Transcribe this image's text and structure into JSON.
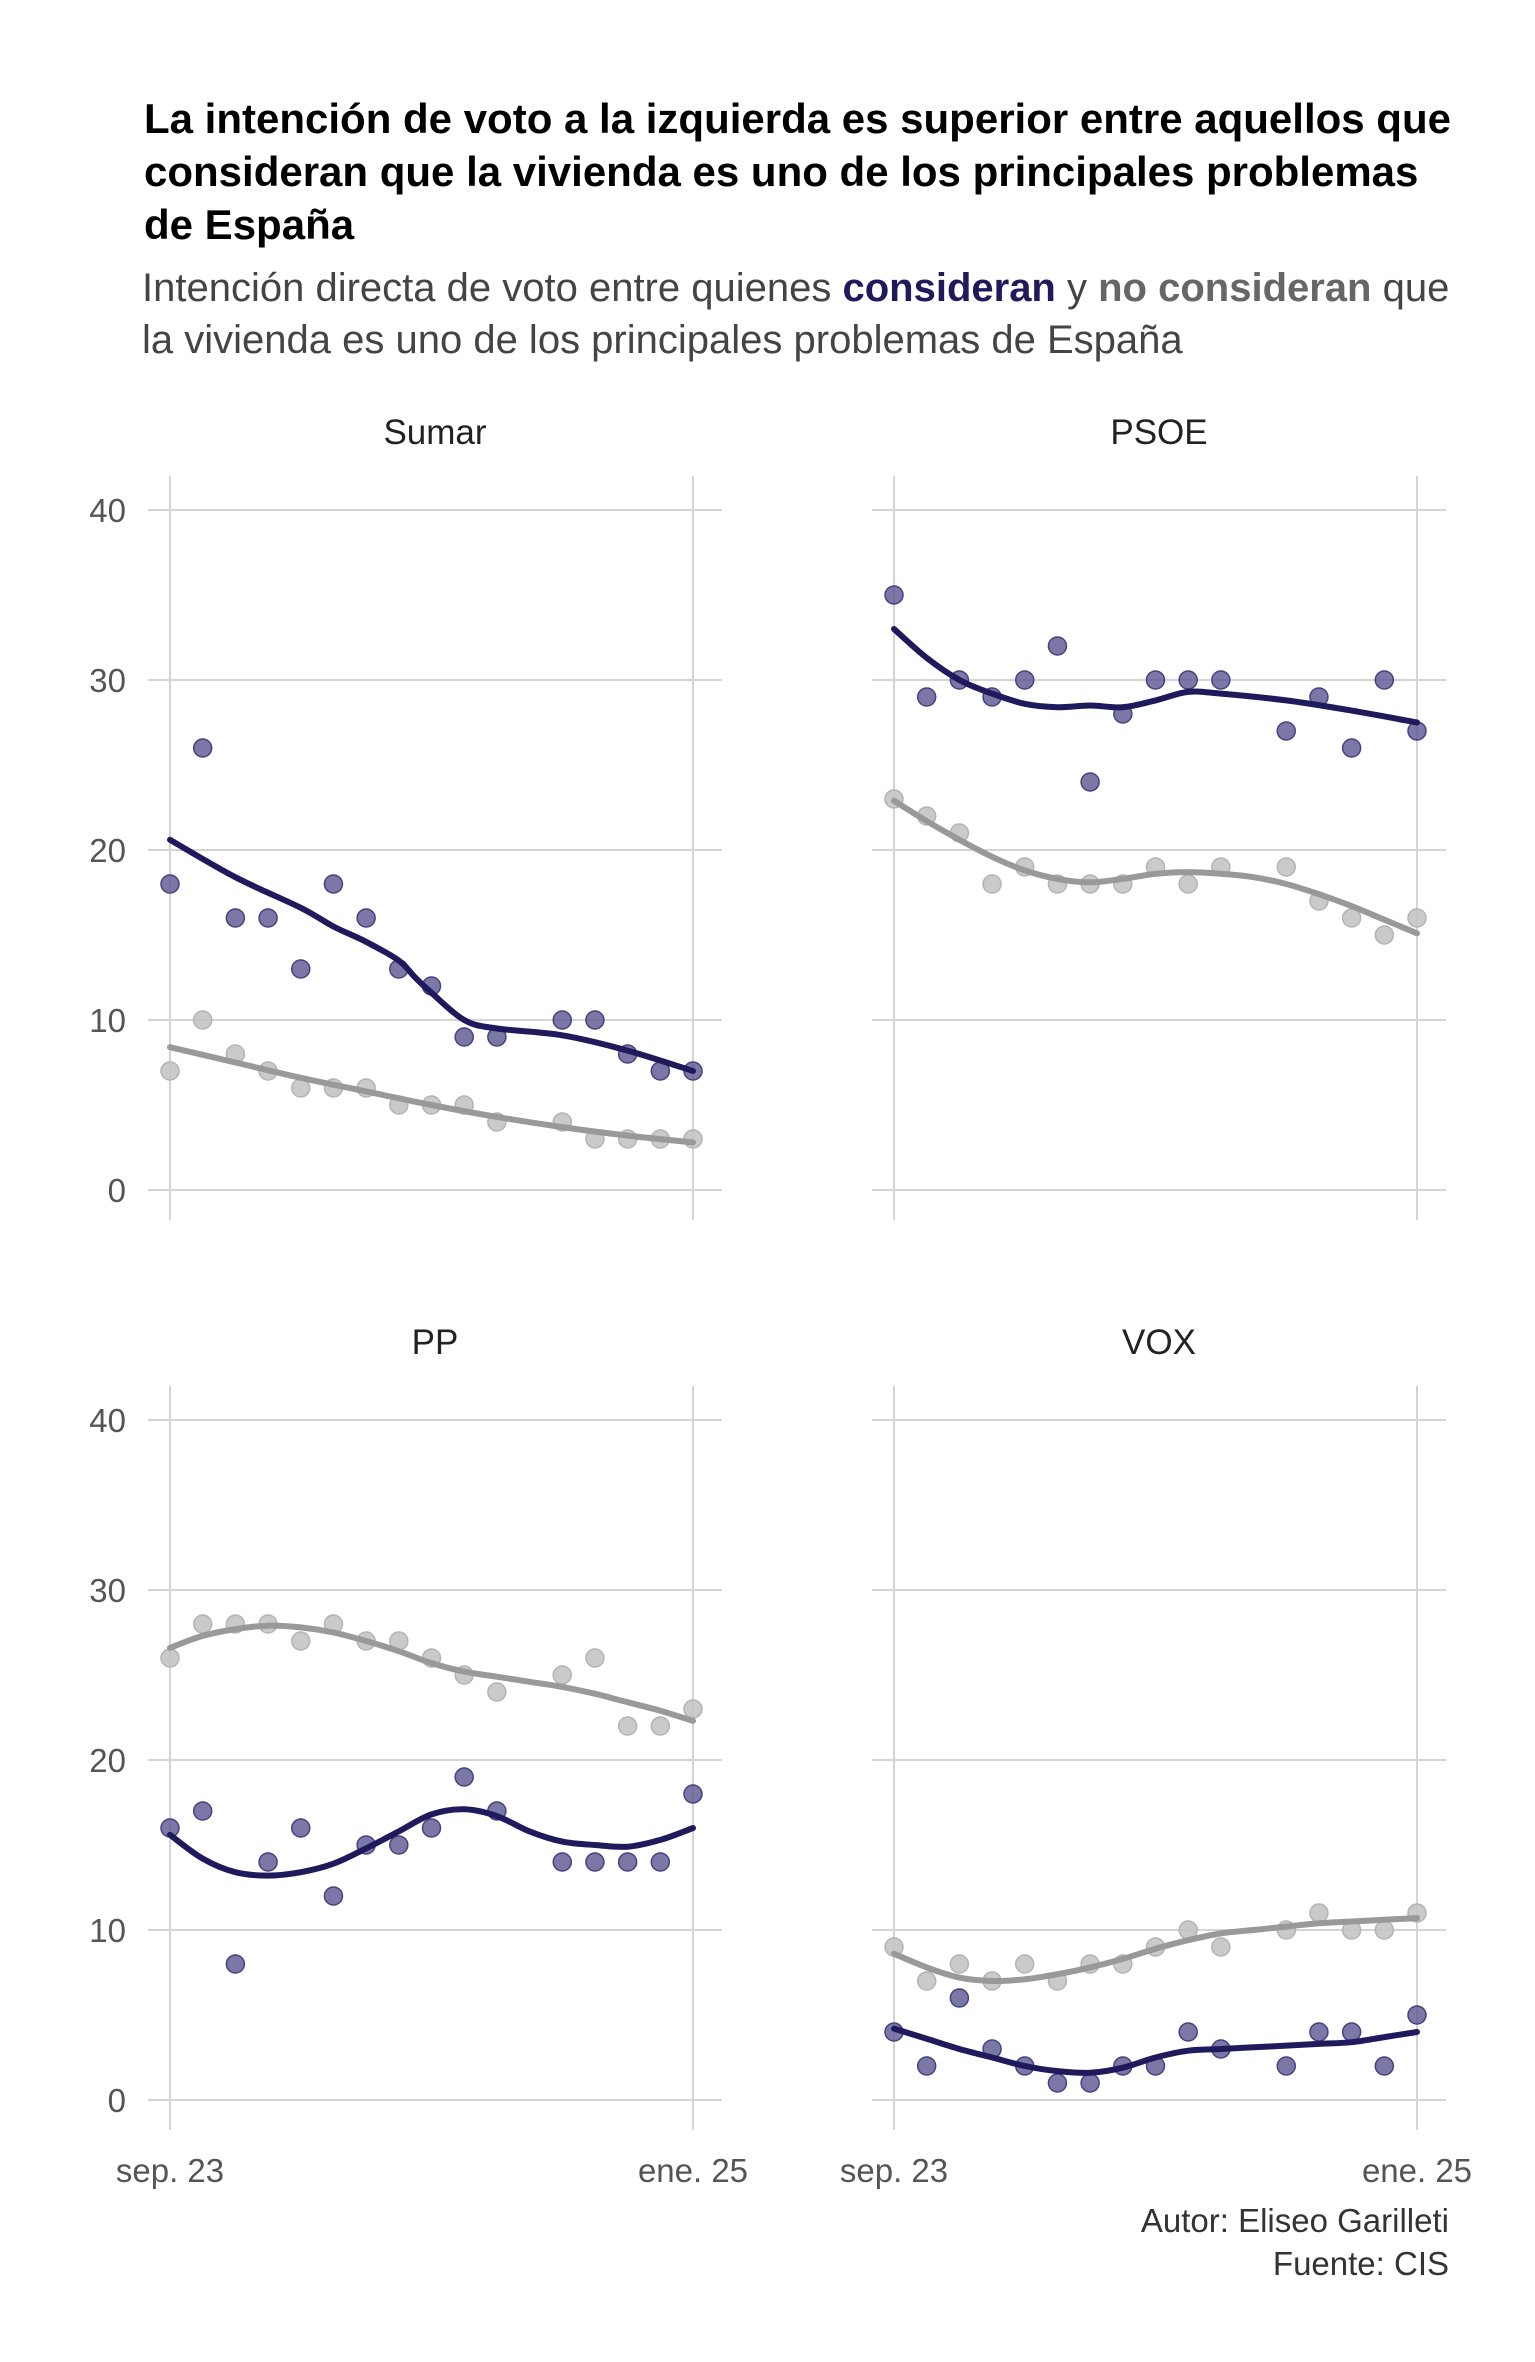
{
  "title": "La intención de voto a la izquierda es superior entre aquellos que consideran que la vivienda es uno de los principales problemas de España",
  "subtitle": {
    "part1": "Intención directa de voto entre quienes ",
    "highlight_yes": "consideran",
    "part2": " y ",
    "highlight_no": "no consideran",
    "part3": " que la vivienda es uno de los principales problemas de España"
  },
  "caption": {
    "author": "Autor: Eliseo Garilleti",
    "source": "Fuente: CIS"
  },
  "colors": {
    "consideran": "#1f1a5c",
    "no_consideran": "#999999",
    "grid": "#d4d4d4",
    "axis_text": "#555555",
    "panel_title": "#222222"
  },
  "chart_data": {
    "type": "scatter",
    "x_ticks": [
      "sep. 23",
      "ene. 25"
    ],
    "x": [
      0,
      1,
      2,
      3,
      4,
      5,
      6,
      7,
      8,
      9,
      10,
      11,
      12,
      13,
      14,
      15,
      16
    ],
    "xlim": [
      0,
      16.8
    ],
    "ylim": [
      0,
      40
    ],
    "y_ticks": [
      0,
      10,
      20,
      30,
      40
    ],
    "grid": true,
    "series_names": [
      "consideran",
      "no consideran"
    ],
    "panels": [
      {
        "name": "Sumar",
        "series": [
          {
            "name": "consideran",
            "values": [
              18,
              26,
              16,
              16,
              13,
              18,
              16,
              13,
              12,
              9,
              9,
              null,
              10,
              10,
              8,
              7,
              7
            ],
            "trend": [
              [
                0,
                20.6
              ],
              [
                2,
                18.4
              ],
              [
                4,
                16.6
              ],
              [
                5,
                15.5
              ],
              [
                6,
                14.6
              ],
              [
                7,
                13.5
              ],
              [
                7.5,
                12.5
              ],
              [
                8,
                11.6
              ],
              [
                9,
                10.0
              ],
              [
                10,
                9.5
              ],
              [
                12,
                9.1
              ],
              [
                14,
                8.2
              ],
              [
                16,
                7.0
              ]
            ]
          },
          {
            "name": "no consideran",
            "values": [
              7,
              10,
              8,
              7,
              6,
              6,
              6,
              5,
              5,
              5,
              4,
              null,
              4,
              3,
              3,
              3,
              3
            ],
            "trend": [
              [
                0,
                8.4
              ],
              [
                2,
                7.5
              ],
              [
                4,
                6.6
              ],
              [
                6,
                5.8
              ],
              [
                8,
                5.0
              ],
              [
                10,
                4.3
              ],
              [
                12,
                3.7
              ],
              [
                14,
                3.2
              ],
              [
                16,
                2.8
              ]
            ]
          }
        ]
      },
      {
        "name": "PSOE",
        "series": [
          {
            "name": "consideran",
            "values": [
              35,
              29,
              30,
              29,
              30,
              32,
              24,
              28,
              30,
              30,
              30,
              null,
              27,
              29,
              26,
              30,
              27
            ],
            "trend": [
              [
                0,
                33.0
              ],
              [
                1,
                31.3
              ],
              [
                2,
                30.0
              ],
              [
                3,
                29.2
              ],
              [
                4,
                28.6
              ],
              [
                5,
                28.4
              ],
              [
                6,
                28.5
              ],
              [
                7,
                28.4
              ],
              [
                8,
                28.8
              ],
              [
                9,
                29.3
              ],
              [
                10,
                29.2
              ],
              [
                12,
                28.8
              ],
              [
                14,
                28.2
              ],
              [
                16,
                27.5
              ]
            ]
          },
          {
            "name": "no consideran",
            "values": [
              23,
              22,
              21,
              18,
              19,
              18,
              18,
              18,
              19,
              18,
              19,
              null,
              19,
              17,
              16,
              15,
              16
            ],
            "trend": [
              [
                0,
                22.9
              ],
              [
                1,
                21.7
              ],
              [
                2,
                20.6
              ],
              [
                3,
                19.6
              ],
              [
                4,
                18.8
              ],
              [
                5,
                18.3
              ],
              [
                6,
                18.1
              ],
              [
                7,
                18.3
              ],
              [
                8,
                18.6
              ],
              [
                9,
                18.7
              ],
              [
                10,
                18.6
              ],
              [
                11,
                18.4
              ],
              [
                12,
                18.0
              ],
              [
                13,
                17.4
              ],
              [
                14,
                16.7
              ],
              [
                15,
                15.9
              ],
              [
                16,
                15.1
              ]
            ]
          }
        ]
      },
      {
        "name": "PP",
        "series": [
          {
            "name": "consideran",
            "values": [
              16,
              17,
              8,
              14,
              16,
              12,
              15,
              15,
              16,
              19,
              17,
              null,
              14,
              14,
              14,
              14,
              18
            ],
            "trend": [
              [
                0,
                15.6
              ],
              [
                1,
                14.2
              ],
              [
                2,
                13.4
              ],
              [
                3,
                13.2
              ],
              [
                4,
                13.4
              ],
              [
                5,
                13.9
              ],
              [
                6,
                14.8
              ],
              [
                7,
                15.8
              ],
              [
                8,
                16.8
              ],
              [
                9,
                17.1
              ],
              [
                10,
                16.7
              ],
              [
                11,
                15.8
              ],
              [
                12,
                15.2
              ],
              [
                13,
                15.0
              ],
              [
                14,
                14.9
              ],
              [
                15,
                15.3
              ],
              [
                16,
                16.0
              ]
            ]
          },
          {
            "name": "no consideran",
            "values": [
              26,
              28,
              28,
              28,
              27,
              28,
              27,
              27,
              26,
              25,
              24,
              null,
              25,
              26,
              22,
              22,
              23
            ],
            "trend": [
              [
                0,
                26.6
              ],
              [
                1,
                27.3
              ],
              [
                2,
                27.7
              ],
              [
                3,
                27.9
              ],
              [
                4,
                27.8
              ],
              [
                5,
                27.5
              ],
              [
                6,
                27.0
              ],
              [
                7,
                26.4
              ],
              [
                8,
                25.7
              ],
              [
                9,
                25.2
              ],
              [
                10,
                24.9
              ],
              [
                11,
                24.6
              ],
              [
                12,
                24.3
              ],
              [
                13,
                23.9
              ],
              [
                14,
                23.4
              ],
              [
                15,
                22.9
              ],
              [
                16,
                22.3
              ]
            ]
          }
        ]
      },
      {
        "name": "VOX",
        "series": [
          {
            "name": "consideran",
            "values": [
              4,
              2,
              6,
              3,
              2,
              1,
              1,
              2,
              2,
              4,
              3,
              null,
              2,
              4,
              4,
              2,
              5
            ],
            "trend": [
              [
                0,
                4.2
              ],
              [
                1,
                3.6
              ],
              [
                2,
                3.0
              ],
              [
                3,
                2.5
              ],
              [
                4,
                2.0
              ],
              [
                5,
                1.7
              ],
              [
                6,
                1.6
              ],
              [
                7,
                1.9
              ],
              [
                8,
                2.5
              ],
              [
                9,
                2.9
              ],
              [
                10,
                3.0
              ],
              [
                11,
                3.1
              ],
              [
                12,
                3.2
              ],
              [
                13,
                3.3
              ],
              [
                14,
                3.4
              ],
              [
                15,
                3.7
              ],
              [
                16,
                4.0
              ]
            ]
          },
          {
            "name": "no consideran",
            "values": [
              9,
              7,
              8,
              7,
              8,
              7,
              8,
              8,
              9,
              10,
              9,
              null,
              10,
              11,
              10,
              10,
              11
            ],
            "trend": [
              [
                0,
                8.6
              ],
              [
                1,
                7.8
              ],
              [
                2,
                7.2
              ],
              [
                3,
                7.0
              ],
              [
                4,
                7.1
              ],
              [
                5,
                7.4
              ],
              [
                6,
                7.8
              ],
              [
                7,
                8.3
              ],
              [
                8,
                8.9
              ],
              [
                9,
                9.4
              ],
              [
                10,
                9.8
              ],
              [
                11,
                10.0
              ],
              [
                12,
                10.2
              ],
              [
                13,
                10.4
              ],
              [
                14,
                10.5
              ],
              [
                15,
                10.6
              ],
              [
                16,
                10.7
              ]
            ]
          }
        ]
      }
    ]
  }
}
